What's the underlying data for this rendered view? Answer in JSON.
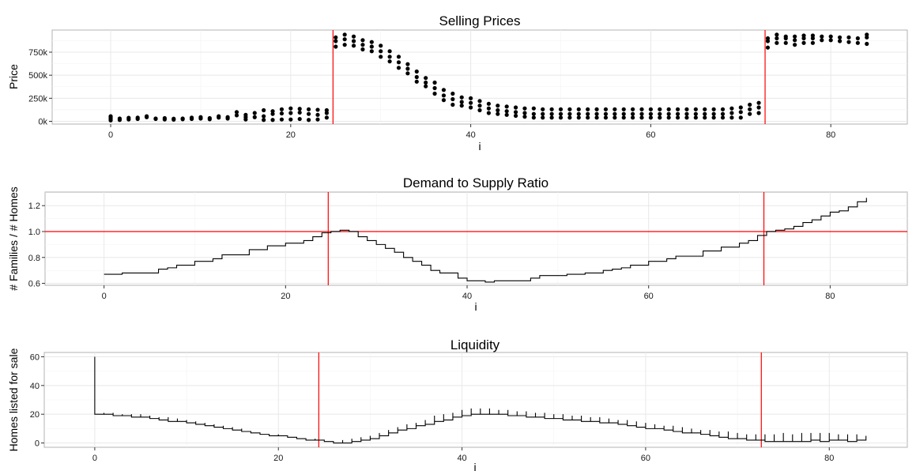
{
  "chart_data": [
    {
      "type": "scatter",
      "title": "Selling Prices",
      "xlabel": "i",
      "ylabel": "Price",
      "xlim": [
        -6.5,
        88.5
      ],
      "ylim": [
        -30000,
        990000
      ],
      "xticks": [
        0,
        20,
        40,
        60,
        80
      ],
      "xtick_labels": [
        "0",
        "20",
        "40",
        "60",
        "80"
      ],
      "yticks": [
        0,
        250000,
        500000,
        750000
      ],
      "ytick_labels": [
        "0k",
        "250k",
        "500k",
        "750k"
      ],
      "vlines": [
        24.7,
        72.7
      ],
      "hlines": [],
      "grid": true,
      "ref_line_color": "#ff0000",
      "mark_color": "#000000",
      "points": [
        [
          0,
          10000
        ],
        [
          0,
          25000
        ],
        [
          0,
          40000
        ],
        [
          0,
          55000
        ],
        [
          1,
          15000
        ],
        [
          1,
          30000
        ],
        [
          2,
          20000
        ],
        [
          2,
          38000
        ],
        [
          3,
          25000
        ],
        [
          3,
          40000
        ],
        [
          4,
          45000
        ],
        [
          4,
          55000
        ],
        [
          5,
          25000
        ],
        [
          5,
          30000
        ],
        [
          6,
          20000
        ],
        [
          6,
          35000
        ],
        [
          7,
          18000
        ],
        [
          7,
          28000
        ],
        [
          8,
          22000
        ],
        [
          8,
          30000
        ],
        [
          9,
          25000
        ],
        [
          9,
          40000
        ],
        [
          10,
          30000
        ],
        [
          10,
          45000
        ],
        [
          11,
          22000
        ],
        [
          11,
          35000
        ],
        [
          12,
          40000
        ],
        [
          12,
          55000
        ],
        [
          13,
          30000
        ],
        [
          13,
          45000
        ],
        [
          14,
          65000
        ],
        [
          14,
          100000
        ],
        [
          15,
          20000
        ],
        [
          15,
          45000
        ],
        [
          15,
          70000
        ],
        [
          16,
          45000
        ],
        [
          16,
          90000
        ],
        [
          17,
          15000
        ],
        [
          17,
          55000
        ],
        [
          17,
          120000
        ],
        [
          18,
          15000
        ],
        [
          18,
          80000
        ],
        [
          18,
          110000
        ],
        [
          19,
          20000
        ],
        [
          19,
          85000
        ],
        [
          19,
          130000
        ],
        [
          20,
          20000
        ],
        [
          20,
          90000
        ],
        [
          20,
          140000
        ],
        [
          21,
          25000
        ],
        [
          21,
          95000
        ],
        [
          21,
          135000
        ],
        [
          22,
          15000
        ],
        [
          22,
          80000
        ],
        [
          22,
          130000
        ],
        [
          23,
          20000
        ],
        [
          23,
          70000
        ],
        [
          23,
          125000
        ],
        [
          24,
          40000
        ],
        [
          24,
          90000
        ],
        [
          24,
          120000
        ],
        [
          25,
          810000
        ],
        [
          25,
          870000
        ],
        [
          25,
          910000
        ],
        [
          26,
          830000
        ],
        [
          26,
          890000
        ],
        [
          26,
          940000
        ],
        [
          27,
          820000
        ],
        [
          27,
          870000
        ],
        [
          27,
          920000
        ],
        [
          28,
          780000
        ],
        [
          28,
          830000
        ],
        [
          28,
          880000
        ],
        [
          29,
          760000
        ],
        [
          29,
          810000
        ],
        [
          29,
          860000
        ],
        [
          30,
          700000
        ],
        [
          30,
          760000
        ],
        [
          30,
          820000
        ],
        [
          31,
          650000
        ],
        [
          31,
          700000
        ],
        [
          31,
          760000
        ],
        [
          32,
          580000
        ],
        [
          32,
          640000
        ],
        [
          32,
          700000
        ],
        [
          33,
          520000
        ],
        [
          33,
          570000
        ],
        [
          33,
          620000
        ],
        [
          34,
          430000
        ],
        [
          34,
          480000
        ],
        [
          34,
          540000
        ],
        [
          35,
          380000
        ],
        [
          35,
          420000
        ],
        [
          35,
          470000
        ],
        [
          36,
          300000
        ],
        [
          36,
          360000
        ],
        [
          36,
          420000
        ],
        [
          37,
          230000
        ],
        [
          37,
          280000
        ],
        [
          37,
          340000
        ],
        [
          38,
          180000
        ],
        [
          38,
          240000
        ],
        [
          38,
          300000
        ],
        [
          39,
          170000
        ],
        [
          39,
          210000
        ],
        [
          39,
          260000
        ],
        [
          40,
          150000
        ],
        [
          40,
          200000
        ],
        [
          40,
          250000
        ],
        [
          41,
          120000
        ],
        [
          41,
          170000
        ],
        [
          41,
          220000
        ],
        [
          42,
          90000
        ],
        [
          42,
          140000
        ],
        [
          42,
          190000
        ],
        [
          43,
          80000
        ],
        [
          43,
          120000
        ],
        [
          43,
          170000
        ],
        [
          44,
          70000
        ],
        [
          44,
          110000
        ],
        [
          44,
          160000
        ],
        [
          45,
          60000
        ],
        [
          45,
          100000
        ],
        [
          45,
          150000
        ],
        [
          46,
          50000
        ],
        [
          46,
          90000
        ],
        [
          46,
          140000
        ],
        [
          47,
          40000
        ],
        [
          47,
          80000
        ],
        [
          47,
          140000
        ],
        [
          48,
          40000
        ],
        [
          48,
          80000
        ],
        [
          48,
          130000
        ],
        [
          49,
          40000
        ],
        [
          49,
          80000
        ],
        [
          49,
          130000
        ],
        [
          50,
          40000
        ],
        [
          50,
          80000
        ],
        [
          50,
          130000
        ],
        [
          51,
          40000
        ],
        [
          51,
          80000
        ],
        [
          51,
          130000
        ],
        [
          52,
          40000
        ],
        [
          52,
          80000
        ],
        [
          52,
          130000
        ],
        [
          53,
          40000
        ],
        [
          53,
          80000
        ],
        [
          53,
          130000
        ],
        [
          54,
          40000
        ],
        [
          54,
          80000
        ],
        [
          54,
          130000
        ],
        [
          55,
          40000
        ],
        [
          55,
          80000
        ],
        [
          55,
          130000
        ],
        [
          56,
          40000
        ],
        [
          56,
          80000
        ],
        [
          56,
          130000
        ],
        [
          57,
          40000
        ],
        [
          57,
          80000
        ],
        [
          57,
          130000
        ],
        [
          58,
          40000
        ],
        [
          58,
          80000
        ],
        [
          58,
          130000
        ],
        [
          59,
          40000
        ],
        [
          59,
          80000
        ],
        [
          59,
          130000
        ],
        [
          60,
          40000
        ],
        [
          60,
          80000
        ],
        [
          60,
          130000
        ],
        [
          61,
          40000
        ],
        [
          61,
          80000
        ],
        [
          61,
          130000
        ],
        [
          62,
          40000
        ],
        [
          62,
          80000
        ],
        [
          62,
          130000
        ],
        [
          63,
          40000
        ],
        [
          63,
          80000
        ],
        [
          63,
          130000
        ],
        [
          64,
          40000
        ],
        [
          64,
          80000
        ],
        [
          64,
          130000
        ],
        [
          65,
          40000
        ],
        [
          65,
          80000
        ],
        [
          65,
          130000
        ],
        [
          66,
          40000
        ],
        [
          66,
          80000
        ],
        [
          66,
          130000
        ],
        [
          67,
          40000
        ],
        [
          67,
          80000
        ],
        [
          67,
          130000
        ],
        [
          68,
          40000
        ],
        [
          68,
          80000
        ],
        [
          68,
          130000
        ],
        [
          69,
          40000
        ],
        [
          69,
          90000
        ],
        [
          69,
          140000
        ],
        [
          70,
          40000
        ],
        [
          70,
          100000
        ],
        [
          70,
          150000
        ],
        [
          71,
          80000
        ],
        [
          71,
          130000
        ],
        [
          71,
          180000
        ],
        [
          72,
          90000
        ],
        [
          72,
          150000
        ],
        [
          72,
          200000
        ],
        [
          73,
          800000
        ],
        [
          73,
          870000
        ],
        [
          73,
          900000
        ],
        [
          74,
          850000
        ],
        [
          74,
          900000
        ],
        [
          74,
          940000
        ],
        [
          75,
          850000
        ],
        [
          75,
          900000
        ],
        [
          75,
          920000
        ],
        [
          76,
          830000
        ],
        [
          76,
          880000
        ],
        [
          76,
          920000
        ],
        [
          77,
          850000
        ],
        [
          77,
          900000
        ],
        [
          77,
          930000
        ],
        [
          78,
          850000
        ],
        [
          78,
          900000
        ],
        [
          78,
          930000
        ],
        [
          79,
          880000
        ],
        [
          79,
          920000
        ],
        [
          80,
          880000
        ],
        [
          80,
          920000
        ],
        [
          81,
          870000
        ],
        [
          81,
          910000
        ],
        [
          82,
          860000
        ],
        [
          82,
          910000
        ],
        [
          83,
          850000
        ],
        [
          83,
          900000
        ],
        [
          84,
          840000
        ],
        [
          84,
          910000
        ],
        [
          84,
          940000
        ]
      ]
    },
    {
      "type": "line",
      "title": "Demand to Supply Ratio",
      "xlabel": "i",
      "ylabel": "# Families / # Homes",
      "xlim": [
        -6.5,
        88.5
      ],
      "ylim": [
        0.585,
        1.305
      ],
      "xticks": [
        0,
        20,
        40,
        60,
        80
      ],
      "xtick_labels": [
        "0",
        "20",
        "40",
        "60",
        "80"
      ],
      "yticks": [
        0.6,
        0.8,
        1.0,
        1.2
      ],
      "ytick_labels": [
        "0.6",
        "0.8",
        "1.0",
        "1.2"
      ],
      "vlines": [
        24.7,
        72.7
      ],
      "hlines": [
        1.0
      ],
      "grid": true,
      "line_shape": "step",
      "ref_line_color": "#ff0000",
      "mark_color": "#000000",
      "x": [
        0,
        1,
        2,
        3,
        4,
        5,
        6,
        7,
        8,
        9,
        10,
        11,
        12,
        13,
        14,
        15,
        16,
        17,
        18,
        19,
        20,
        21,
        22,
        23,
        24,
        25,
        26,
        27,
        28,
        29,
        30,
        31,
        32,
        33,
        34,
        35,
        36,
        37,
        38,
        39,
        40,
        41,
        42,
        43,
        44,
        45,
        46,
        47,
        48,
        49,
        50,
        51,
        52,
        53,
        54,
        55,
        56,
        57,
        58,
        59,
        60,
        61,
        62,
        63,
        64,
        65,
        66,
        67,
        68,
        69,
        70,
        71,
        72,
        73,
        74,
        75,
        76,
        77,
        78,
        79,
        80,
        81,
        82,
        83,
        84
      ],
      "y": [
        0.67,
        0.67,
        0.68,
        0.68,
        0.68,
        0.68,
        0.71,
        0.72,
        0.74,
        0.74,
        0.77,
        0.77,
        0.79,
        0.82,
        0.82,
        0.82,
        0.86,
        0.86,
        0.89,
        0.89,
        0.91,
        0.91,
        0.93,
        0.96,
        0.99,
        1.0,
        1.01,
        1.0,
        0.96,
        0.93,
        0.9,
        0.87,
        0.84,
        0.8,
        0.77,
        0.74,
        0.7,
        0.68,
        0.68,
        0.64,
        0.62,
        0.62,
        0.61,
        0.62,
        0.62,
        0.62,
        0.62,
        0.64,
        0.66,
        0.66,
        0.66,
        0.67,
        0.67,
        0.68,
        0.68,
        0.7,
        0.71,
        0.72,
        0.74,
        0.74,
        0.77,
        0.77,
        0.79,
        0.81,
        0.81,
        0.81,
        0.85,
        0.85,
        0.88,
        0.88,
        0.91,
        0.93,
        0.97,
        1.0,
        1.01,
        1.02,
        1.04,
        1.07,
        1.09,
        1.12,
        1.15,
        1.16,
        1.19,
        1.23,
        1.26
      ]
    },
    {
      "type": "line",
      "title": "Liquidity",
      "xlabel": "i",
      "ylabel": "Homes listed for sale",
      "xlim": [
        -5.5,
        88.5
      ],
      "ylim": [
        -3,
        63
      ],
      "xticks": [
        0,
        20,
        40,
        60,
        80
      ],
      "xtick_labels": [
        "0",
        "20",
        "40",
        "60",
        "80"
      ],
      "yticks": [
        0,
        20,
        40,
        60
      ],
      "ytick_labels": [
        "0",
        "20",
        "40",
        "60"
      ],
      "vlines": [
        24.4,
        72.6
      ],
      "hlines": [],
      "grid": true,
      "line_shape": "sawtooth",
      "ref_line_color": "#ff0000",
      "mark_color": "#000000",
      "x": [
        0,
        1,
        2,
        3,
        4,
        5,
        6,
        7,
        8,
        9,
        10,
        11,
        12,
        13,
        14,
        15,
        16,
        17,
        18,
        19,
        20,
        21,
        22,
        23,
        24,
        25,
        26,
        27,
        28,
        29,
        30,
        31,
        32,
        33,
        34,
        35,
        36,
        37,
        38,
        39,
        40,
        41,
        42,
        43,
        44,
        45,
        46,
        47,
        48,
        49,
        50,
        51,
        52,
        53,
        54,
        55,
        56,
        57,
        58,
        59,
        60,
        61,
        62,
        63,
        64,
        65,
        66,
        67,
        68,
        69,
        70,
        71,
        72,
        73,
        74,
        75,
        76,
        77,
        78,
        79,
        80,
        81,
        82,
        83,
        84
      ],
      "y_start": [
        60,
        21,
        21,
        20,
        20,
        20,
        19,
        18,
        18,
        17,
        16,
        15,
        14,
        13,
        12,
        11,
        10,
        8,
        7,
        6,
        6,
        5,
        4,
        3,
        3,
        2,
        1,
        2,
        3,
        4,
        5,
        7,
        9,
        11,
        13,
        14,
        16,
        19,
        20,
        21,
        23,
        24,
        24,
        24,
        23,
        23,
        22,
        22,
        21,
        21,
        20,
        20,
        19,
        19,
        18,
        18,
        17,
        16,
        16,
        15,
        14,
        13,
        12,
        12,
        11,
        10,
        9,
        9,
        8,
        8,
        7,
        6,
        6,
        6,
        6,
        7,
        6,
        7,
        7,
        7,
        7,
        6,
        6,
        6,
        5
      ],
      "y_end": [
        20,
        20,
        19,
        19,
        18,
        18,
        17,
        16,
        15,
        15,
        14,
        13,
        12,
        11,
        10,
        9,
        8,
        7,
        6,
        5,
        5,
        4,
        3,
        2,
        2,
        1,
        0,
        0,
        1,
        2,
        3,
        5,
        7,
        9,
        10,
        12,
        13,
        15,
        16,
        18,
        19,
        20,
        20,
        20,
        20,
        19,
        19,
        18,
        18,
        17,
        17,
        16,
        16,
        15,
        15,
        14,
        14,
        13,
        12,
        11,
        10,
        10,
        9,
        8,
        7,
        7,
        6,
        5,
        4,
        3,
        3,
        2,
        2,
        1,
        1,
        1,
        1,
        1,
        2,
        1,
        2,
        2,
        1,
        2,
        4
      ]
    }
  ]
}
